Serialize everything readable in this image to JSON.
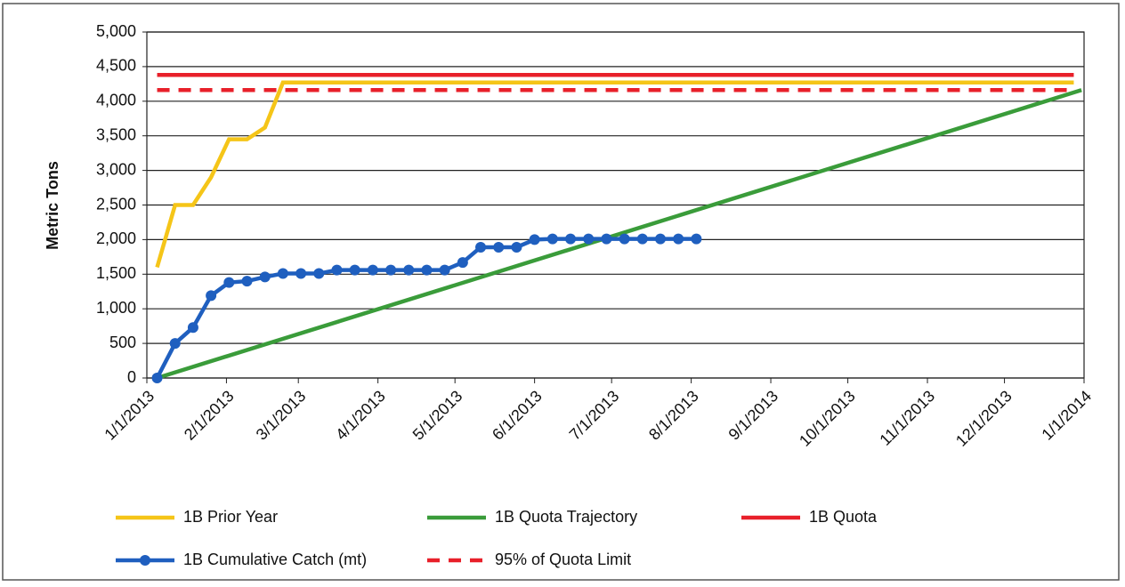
{
  "chart_data": {
    "type": "line",
    "y_label": "Metric Tons",
    "xlim": [
      "1/1/2013",
      "1/1/2014"
    ],
    "xticks": [
      "1/1/2013",
      "2/1/2013",
      "3/1/2013",
      "4/1/2013",
      "5/1/2013",
      "6/1/2013",
      "7/1/2013",
      "8/1/2013",
      "9/1/2013",
      "10/1/2013",
      "11/1/2013",
      "12/1/2013",
      "1/1/2014"
    ],
    "ylim": [
      0,
      5000
    ],
    "yticks": [
      0,
      500,
      {
        "value": 1000,
        "label": "1,000"
      },
      {
        "value": 1500,
        "label": "1,500"
      },
      {
        "value": 2000,
        "label": "2,000"
      },
      {
        "value": 2500,
        "label": "2,500"
      },
      {
        "value": 3000,
        "label": "3,000"
      },
      {
        "value": 3500,
        "label": "3,500"
      },
      {
        "value": 4000,
        "label": "4,000"
      },
      {
        "value": 4500,
        "label": "4,500"
      },
      {
        "value": 5000,
        "label": "5,000"
      }
    ],
    "grid": true,
    "legend": "bottom",
    "series": [
      {
        "name": "1B Prior Year",
        "color": "#f5c518",
        "x": [
          "1/5/2013",
          "1/12/2013",
          "1/19/2013",
          "1/26/2013",
          "2/2/2013",
          "2/9/2013",
          "2/16/2013",
          "2/23/2013",
          "12/28/2013"
        ],
        "values": [
          1600,
          2500,
          2500,
          2900,
          3450,
          3450,
          3620,
          4270,
          4270
        ]
      },
      {
        "name": "1B Quota Trajectory",
        "color": "#3a9c3a",
        "x": [
          "1/5/2013",
          "12/31/2013"
        ],
        "values": [
          0,
          4161
        ]
      },
      {
        "name": "1B Quota",
        "color": "#e8202a",
        "x": [
          "1/5/2013",
          "12/28/2013"
        ],
        "values": [
          4380,
          4380
        ]
      },
      {
        "name": "1B Cumulative Catch (mt)",
        "color": "#1f5fbf",
        "marker": "circle",
        "x": [
          "1/5/2013",
          "1/12/2013",
          "1/19/2013",
          "1/26/2013",
          "2/2/2013",
          "2/9/2013",
          "2/16/2013",
          "2/23/2013",
          "3/2/2013",
          "3/9/2013",
          "3/16/2013",
          "3/23/2013",
          "3/30/2013",
          "4/6/2013",
          "4/13/2013",
          "4/20/2013",
          "4/27/2013",
          "5/4/2013",
          "5/11/2013",
          "5/18/2013",
          "5/25/2013",
          "6/1/2013",
          "6/8/2013",
          "6/15/2013",
          "6/22/2013",
          "6/29/2013",
          "7/6/2013",
          "7/13/2013",
          "7/20/2013",
          "7/27/2013",
          "8/3/2013"
        ],
        "values": [
          0,
          500,
          730,
          1190,
          1380,
          1400,
          1460,
          1510,
          1510,
          1510,
          1560,
          1560,
          1560,
          1560,
          1560,
          1560,
          1560,
          1670,
          1890,
          1890,
          1890,
          2000,
          2010,
          2010,
          2010,
          2010,
          2010,
          2010,
          2010,
          2010,
          2010
        ]
      },
      {
        "name": "95% of Quota Limit",
        "color": "#e8202a",
        "dash": true,
        "x": [
          "1/5/2013",
          "12/28/2013"
        ],
        "values": [
          4161,
          4161
        ]
      }
    ]
  }
}
